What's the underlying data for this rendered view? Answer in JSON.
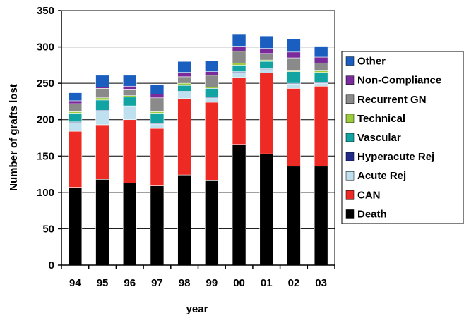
{
  "chart_data": {
    "type": "bar",
    "stacked": true,
    "xlabel": "year",
    "ylabel": "Number of grafts lost",
    "ylim": [
      0,
      350
    ],
    "yticks": [
      0,
      50,
      100,
      150,
      200,
      250,
      300,
      350
    ],
    "grid": true,
    "legend_position": "right",
    "categories": [
      "94",
      "95",
      "96",
      "97",
      "98",
      "99",
      "00",
      "01",
      "02",
      "03"
    ],
    "series": [
      {
        "name": "Death",
        "color": "#000000",
        "values": [
          107,
          118,
          113,
          109,
          124,
          117,
          166,
          153,
          136,
          136
        ]
      },
      {
        "name": "CAN",
        "color": "#ee2a24",
        "values": [
          77,
          75,
          87,
          79,
          105,
          107,
          92,
          111,
          107,
          110
        ]
      },
      {
        "name": "Acute Rej",
        "color": "#bfe0ef",
        "values": [
          12,
          19,
          18,
          6,
          9,
          6,
          7,
          5,
          6,
          4
        ]
      },
      {
        "name": "Hyperacute Rej",
        "color": "#1f2a8a",
        "values": [
          1,
          1,
          1,
          1,
          1,
          1,
          1,
          1,
          1,
          1
        ]
      },
      {
        "name": "Vascular",
        "color": "#12a3a3",
        "values": [
          12,
          14,
          12,
          14,
          8,
          12,
          9,
          10,
          16,
          14
        ]
      },
      {
        "name": "Technical",
        "color": "#9ccc3c",
        "values": [
          2,
          3,
          2,
          2,
          3,
          2,
          3,
          2,
          2,
          3
        ]
      },
      {
        "name": "Recurrent GN",
        "color": "#8a8a8a",
        "values": [
          11,
          13,
          9,
          19,
          9,
          16,
          16,
          9,
          17,
          10
        ]
      },
      {
        "name": "Non-Compliance",
        "color": "#7a2a9a",
        "values": [
          4,
          2,
          4,
          5,
          6,
          5,
          7,
          7,
          8,
          8
        ]
      },
      {
        "name": "Other",
        "color": "#1a5fbf",
        "values": [
          11,
          16,
          15,
          13,
          15,
          15,
          17,
          17,
          18,
          15
        ]
      }
    ]
  }
}
